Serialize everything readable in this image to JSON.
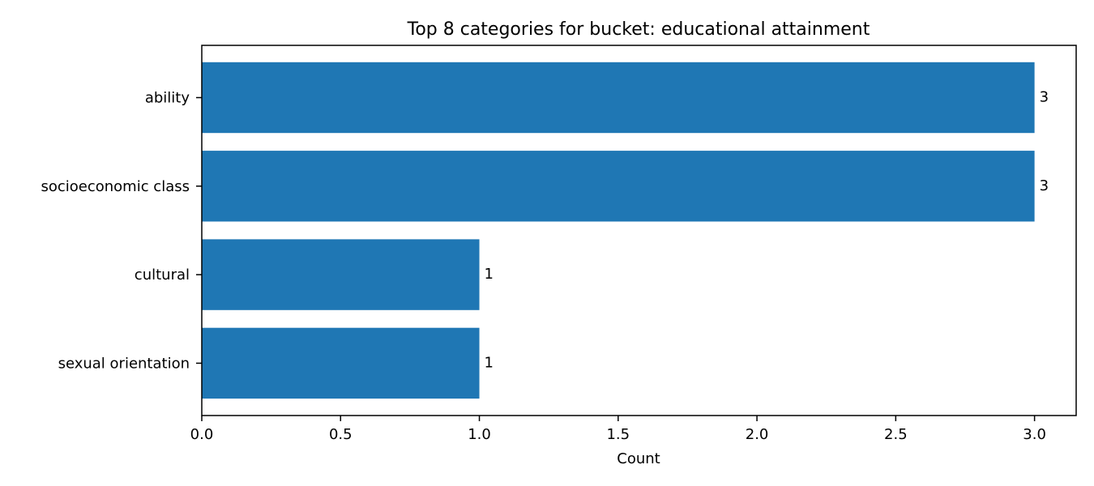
{
  "chart_data": {
    "type": "bar",
    "orientation": "horizontal",
    "title": "Top 8 categories for bucket: educational attainment",
    "xlabel": "Count",
    "ylabel": "",
    "categories": [
      "ability",
      "socioeconomic class",
      "cultural",
      "sexual orientation"
    ],
    "values": [
      3,
      3,
      1,
      1
    ],
    "xlim": [
      0,
      3.15
    ],
    "xticks": [
      "0.0",
      "0.5",
      "1.0",
      "1.5",
      "2.0",
      "2.5",
      "3.0"
    ],
    "data_labels": [
      "3",
      "3",
      "1",
      "1"
    ],
    "bar_color": "#1f77b4",
    "grid": false,
    "legend": "none"
  }
}
